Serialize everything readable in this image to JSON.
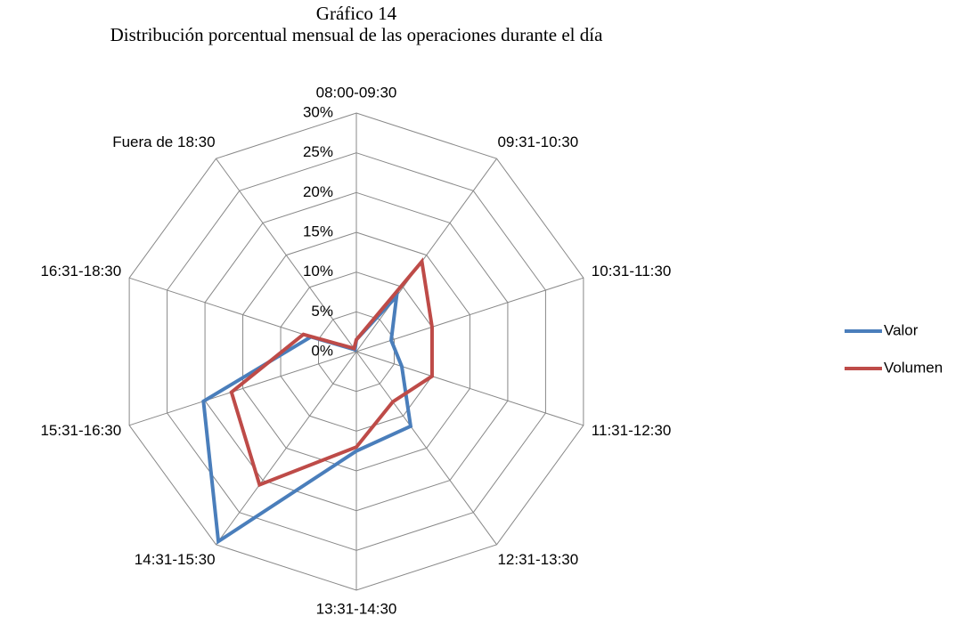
{
  "chart_data": {
    "type": "radar",
    "title": "Gráfico 14",
    "subtitle": "Distribución porcentual mensual de las operaciones durante el día",
    "categories": [
      "08:00-09:30",
      "09:31-10:30",
      "10:31-11:30",
      "11:31-12:30",
      "12:31-13:30",
      "13:31-14:30",
      "14:31-15:30",
      "15:31-16:30",
      "16:31-18:30",
      "Fuera de 18:30"
    ],
    "series": [
      {
        "name": "Valor",
        "color": "#4a7ebb",
        "values": [
          1.5,
          8.6,
          4.6,
          6,
          11.6,
          12.5,
          29.5,
          20.2,
          6,
          0.3
        ]
      },
      {
        "name": "Volumen",
        "color": "#be4b48",
        "values": [
          1.5,
          14,
          10,
          10,
          7.8,
          12,
          20.7,
          16.5,
          7,
          0.5
        ]
      }
    ],
    "ylim": [
      0,
      30
    ],
    "yticks": [
      {
        "value": 0,
        "label": "0%"
      },
      {
        "value": 5,
        "label": "5%"
      },
      {
        "value": 10,
        "label": "10%"
      },
      {
        "value": 15,
        "label": "15%"
      },
      {
        "value": 20,
        "label": "20%"
      },
      {
        "value": 25,
        "label": "25%"
      },
      {
        "value": 30,
        "label": "30%"
      }
    ],
    "grid": true,
    "legend": "right"
  }
}
